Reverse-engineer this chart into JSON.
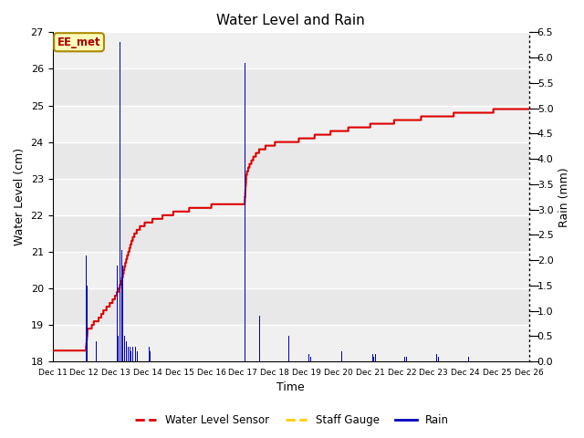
{
  "title": "Water Level and Rain",
  "xlabel": "Time",
  "ylabel_left": "Water Level (cm)",
  "ylabel_right": "Rain (mm)",
  "annotation_text": "EE_met",
  "ylim_left": [
    18.0,
    27.0
  ],
  "ylim_right": [
    0.0,
    6.5
  ],
  "yticks_left": [
    18.0,
    19.0,
    20.0,
    21.0,
    22.0,
    23.0,
    24.0,
    25.0,
    26.0,
    27.0
  ],
  "yticks_right": [
    0.0,
    0.5,
    1.0,
    1.5,
    2.0,
    2.5,
    3.0,
    3.5,
    4.0,
    4.5,
    5.0,
    5.5,
    6.0,
    6.5
  ],
  "bg_color": "#e8e8e8",
  "stripe_color": "#d0d0d0",
  "water_level_color": "#dd0000",
  "staff_gauge_color": "#ffcc00",
  "rain_color": "#0000bb",
  "legend_entries": [
    "Water Level Sensor",
    "Staff Gauge",
    "Rain"
  ],
  "legend_colors": [
    "#dd0000",
    "#ffcc00",
    "#0000bb"
  ],
  "num_days": 15,
  "day_labels": [
    "Dec 11",
    "Dec 12",
    "Dec 13",
    "Dec 14",
    "Dec 15",
    "Dec 16",
    "Dec 17",
    "Dec 18",
    "Dec 19",
    "Dec 20",
    "Dec 21",
    "Dec 22",
    "Dec 23",
    "Dec 24",
    "Dec 25",
    "Dec 26"
  ]
}
